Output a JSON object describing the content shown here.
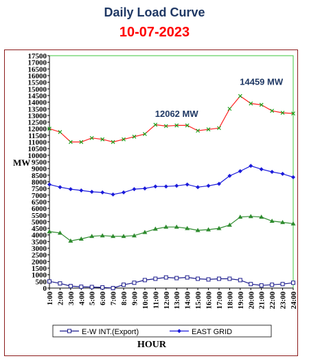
{
  "header": {
    "title": "Daily Load Curve",
    "date": "10-07-2023"
  },
  "chart_data": {
    "type": "line",
    "ylabel": "MW",
    "xlabel": "HOUR",
    "ylim": [
      0,
      17500
    ],
    "yticks": [
      0,
      500,
      1000,
      1500,
      2000,
      2500,
      3000,
      3500,
      4000,
      4500,
      5000,
      5500,
      6000,
      6500,
      7000,
      7500,
      8000,
      8500,
      9000,
      9500,
      10000,
      10500,
      11000,
      11500,
      12000,
      12500,
      13000,
      13500,
      14000,
      14500,
      15000,
      15500,
      16000,
      16500,
      17000,
      17500
    ],
    "x": [
      "1:00",
      "2:00",
      "3:00",
      "4:00",
      "5:00",
      "6:00",
      "7:00",
      "8:00",
      "9:00",
      "10:00",
      "11:00",
      "12:00",
      "13:00",
      "14:00",
      "15:00",
      "16:00",
      "17:00",
      "18:00",
      "19:00",
      "20:00",
      "21:00",
      "22:00",
      "23:00",
      "24:00"
    ],
    "grid": false,
    "legend_position": "bottom",
    "annotations": [
      {
        "text": "12062 MW",
        "x": 13.0,
        "y": 12062
      },
      {
        "text": "14459 MW",
        "x": 21.0,
        "y": 14459
      }
    ],
    "series": [
      {
        "name": "",
        "color": "#ff2020",
        "marker": "x",
        "values": [
          12000,
          11750,
          11000,
          11000,
          11300,
          11200,
          11000,
          11200,
          11400,
          11600,
          12300,
          12200,
          12250,
          12250,
          11850,
          11950,
          12050,
          13500,
          14459,
          13900,
          13800,
          13350,
          13200,
          13150
        ]
      },
      {
        "name": "EAST GRID",
        "color": "#1a1adb",
        "marker": "diamond",
        "values": [
          7800,
          7600,
          7450,
          7350,
          7250,
          7200,
          7050,
          7200,
          7450,
          7500,
          7650,
          7650,
          7700,
          7800,
          7600,
          7700,
          7850,
          8450,
          8800,
          9200,
          8950,
          8750,
          8600,
          8350
        ]
      },
      {
        "name": "",
        "color": "#2e8b2e",
        "marker": "triangle",
        "values": [
          4250,
          4150,
          3550,
          3700,
          3900,
          3950,
          3900,
          3900,
          3950,
          4200,
          4450,
          4600,
          4600,
          4500,
          4350,
          4400,
          4500,
          4750,
          5350,
          5400,
          5350,
          5050,
          4950,
          4850
        ]
      },
      {
        "name": "E-W INT.(Export)",
        "color": "#1a1a8c",
        "marker": "square",
        "values": [
          500,
          350,
          150,
          100,
          80,
          50,
          0,
          250,
          400,
          600,
          700,
          800,
          750,
          800,
          700,
          650,
          700,
          700,
          600,
          300,
          200,
          250,
          300,
          400
        ]
      }
    ]
  }
}
